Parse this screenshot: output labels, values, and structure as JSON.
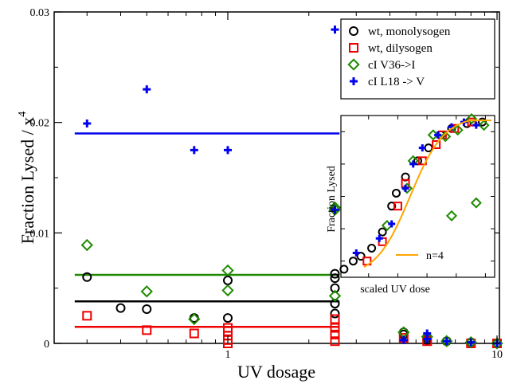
{
  "chart_data": {
    "type": "scatter",
    "xlabel": "UV dosage",
    "ylabel_base": "Fraction Lysed / x",
    "ylabel_sup": "4",
    "x_scale": "log",
    "xlim": [
      0.2,
      10
    ],
    "ylim": [
      0,
      0.03
    ],
    "x_ticks": [
      {
        "value": 1,
        "label": "1"
      },
      {
        "value": 10,
        "label": "10"
      }
    ],
    "y_ticks": [
      {
        "value": 0,
        "label": "0"
      },
      {
        "value": 0.01,
        "label": "0.01"
      },
      {
        "value": 0.02,
        "label": "0.02"
      },
      {
        "value": 0.03,
        "label": "0.03"
      }
    ],
    "legend_position": "top-right",
    "series": [
      {
        "name": "wt, monolysogen",
        "marker": "circle",
        "color": "#000000",
        "points": [
          [
            0.3,
            0.006
          ],
          [
            0.4,
            0.0032
          ],
          [
            0.5,
            0.0031
          ],
          [
            0.75,
            0.0023
          ],
          [
            1.0,
            0.0057
          ],
          [
            1.0,
            0.0023
          ],
          [
            2.5,
            0.0063
          ],
          [
            2.5,
            0.0059
          ],
          [
            2.5,
            0.005
          ],
          [
            2.5,
            0.0036
          ],
          [
            2.5,
            0.0027
          ],
          [
            4.5,
            0.001
          ],
          [
            4.5,
            0.0008
          ],
          [
            5.5,
            0.0005
          ],
          [
            5.5,
            0.0003
          ],
          [
            6.5,
            0.0002
          ],
          [
            8.0,
            0.0001
          ],
          [
            10.0,
            0.0
          ]
        ],
        "fit": 0.0038
      },
      {
        "name": "wt, dilysogen",
        "marker": "square",
        "color": "#ee0000",
        "points": [
          [
            0.3,
            0.0025
          ],
          [
            0.5,
            0.0012
          ],
          [
            0.75,
            0.0009
          ],
          [
            1.0,
            0.0014
          ],
          [
            1.0,
            0.0011
          ],
          [
            1.0,
            0.0007
          ],
          [
            1.0,
            0.0003
          ],
          [
            1.0,
            0.0
          ],
          [
            2.5,
            0.0022
          ],
          [
            2.5,
            0.0014
          ],
          [
            2.5,
            0.0008
          ],
          [
            2.5,
            0.0002
          ],
          [
            4.5,
            0.0005
          ],
          [
            5.5,
            0.0002
          ],
          [
            8.0,
            0.0
          ],
          [
            10.0,
            0.0
          ]
        ],
        "fit": 0.0015
      },
      {
        "name": "cI V36->I",
        "marker": "diamond",
        "color": "#1f8a00",
        "points": [
          [
            0.3,
            0.0089
          ],
          [
            0.5,
            0.0047
          ],
          [
            0.75,
            0.0022
          ],
          [
            1.0,
            0.0048
          ],
          [
            1.0,
            0.0066
          ],
          [
            2.5,
            0.0123
          ],
          [
            2.5,
            0.0121
          ],
          [
            2.5,
            0.0043
          ],
          [
            4.5,
            0.001
          ],
          [
            5.5,
            0.0006
          ],
          [
            6.5,
            0.0002
          ],
          [
            8.0,
            0.0001
          ],
          [
            10.0,
            0.0
          ]
        ],
        "fit": 0.0062
      },
      {
        "name": "cI L18 -> V",
        "marker": "plus",
        "color": "#0000ee",
        "points": [
          [
            0.3,
            0.0199
          ],
          [
            0.5,
            0.023
          ],
          [
            0.75,
            0.0175
          ],
          [
            1.0,
            0.0175
          ],
          [
            2.5,
            0.0284
          ],
          [
            2.5,
            0.0121
          ],
          [
            4.5,
            0.0003
          ],
          [
            5.5,
            0.0009
          ],
          [
            5.5,
            0.0004
          ],
          [
            6.5,
            0.0002
          ],
          [
            8.0,
            0.0001
          ],
          [
            10.0,
            0.0
          ]
        ],
        "fit": 0.019
      }
    ],
    "inset": {
      "xlabel": "scaled UV dose",
      "ylabel": "Fraction Lysed",
      "fit_label": "n=4",
      "fit_color": "#ffa500",
      "xlim": [
        0,
        1
      ],
      "ylim": [
        0,
        1
      ],
      "series_points": [
        [
          [
            0.02,
            0.05
          ],
          [
            0.08,
            0.1
          ],
          [
            0.13,
            0.13
          ],
          [
            0.2,
            0.18
          ],
          [
            0.27,
            0.28
          ],
          [
            0.33,
            0.44
          ],
          [
            0.36,
            0.52
          ],
          [
            0.42,
            0.62
          ],
          [
            0.5,
            0.72
          ],
          [
            0.57,
            0.8
          ],
          [
            0.65,
            0.88
          ],
          [
            0.72,
            0.92
          ],
          [
            0.82,
            0.95
          ],
          [
            0.92,
            0.96
          ]
        ],
        [
          [
            0.17,
            0.1
          ],
          [
            0.27,
            0.22
          ],
          [
            0.37,
            0.44
          ],
          [
            0.42,
            0.58
          ],
          [
            0.53,
            0.72
          ],
          [
            0.62,
            0.82
          ],
          [
            0.66,
            0.88
          ],
          [
            0.74,
            0.92
          ],
          [
            0.85,
            0.96
          ]
        ],
        [
          [
            0.3,
            0.32
          ],
          [
            0.43,
            0.55
          ],
          [
            0.47,
            0.72
          ],
          [
            0.6,
            0.88
          ],
          [
            0.68,
            0.87
          ],
          [
            0.76,
            0.91
          ],
          [
            0.85,
            0.98
          ],
          [
            0.93,
            0.94
          ],
          [
            0.88,
            0.46
          ],
          [
            0.72,
            0.38
          ]
        ],
        [
          [
            0.1,
            0.15
          ],
          [
            0.25,
            0.24
          ],
          [
            0.33,
            0.33
          ],
          [
            0.42,
            0.55
          ],
          [
            0.47,
            0.7
          ],
          [
            0.53,
            0.8
          ],
          [
            0.63,
            0.88
          ],
          [
            0.72,
            0.93
          ],
          [
            0.8,
            0.96
          ],
          [
            0.88,
            0.94
          ]
        ]
      ]
    }
  }
}
